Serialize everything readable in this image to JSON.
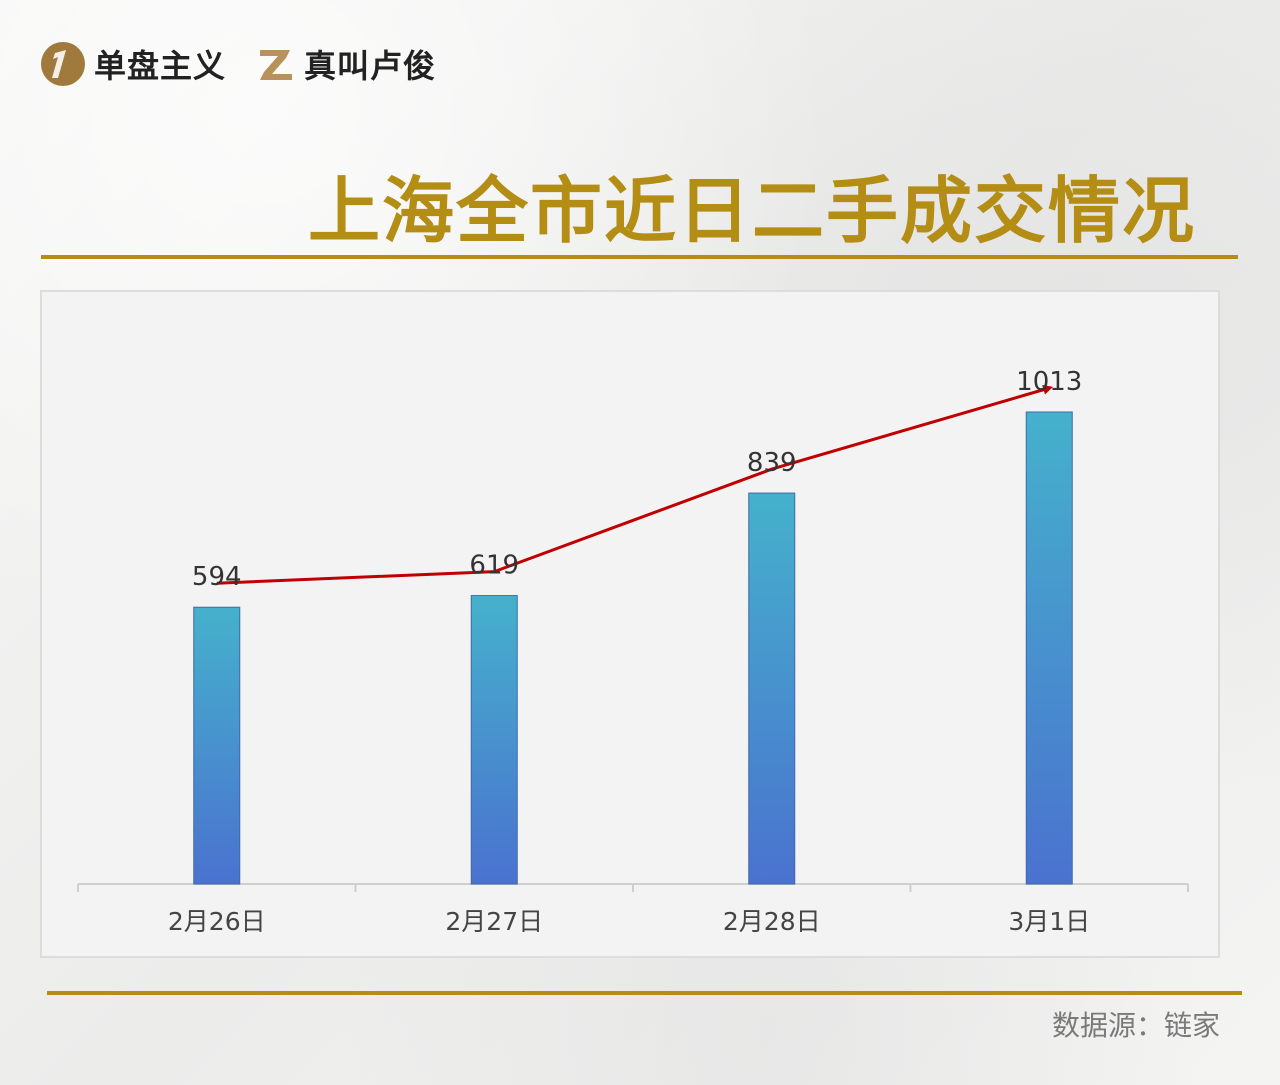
{
  "brand": {
    "logo1_text": "单盘主义",
    "logo2_text": "真叫卢俊",
    "gold": "#b48d14"
  },
  "title": "上海全市近日二手成交情况",
  "source": "数据源：链家",
  "chart_data": {
    "type": "bar",
    "title": "上海全市近日二手成交情况",
    "categories": [
      "2月26日",
      "2月27日",
      "2月28日",
      "3月1日"
    ],
    "values": [
      594,
      619,
      839,
      1013
    ],
    "data_labels": [
      "594",
      "619",
      "839",
      "1013"
    ],
    "ylim": [
      0,
      1013
    ],
    "grid": false,
    "bar_gradient": [
      "#45b1cc",
      "#4a72cf"
    ],
    "trend_line": {
      "color": "#c00000",
      "arrow": "end"
    }
  }
}
